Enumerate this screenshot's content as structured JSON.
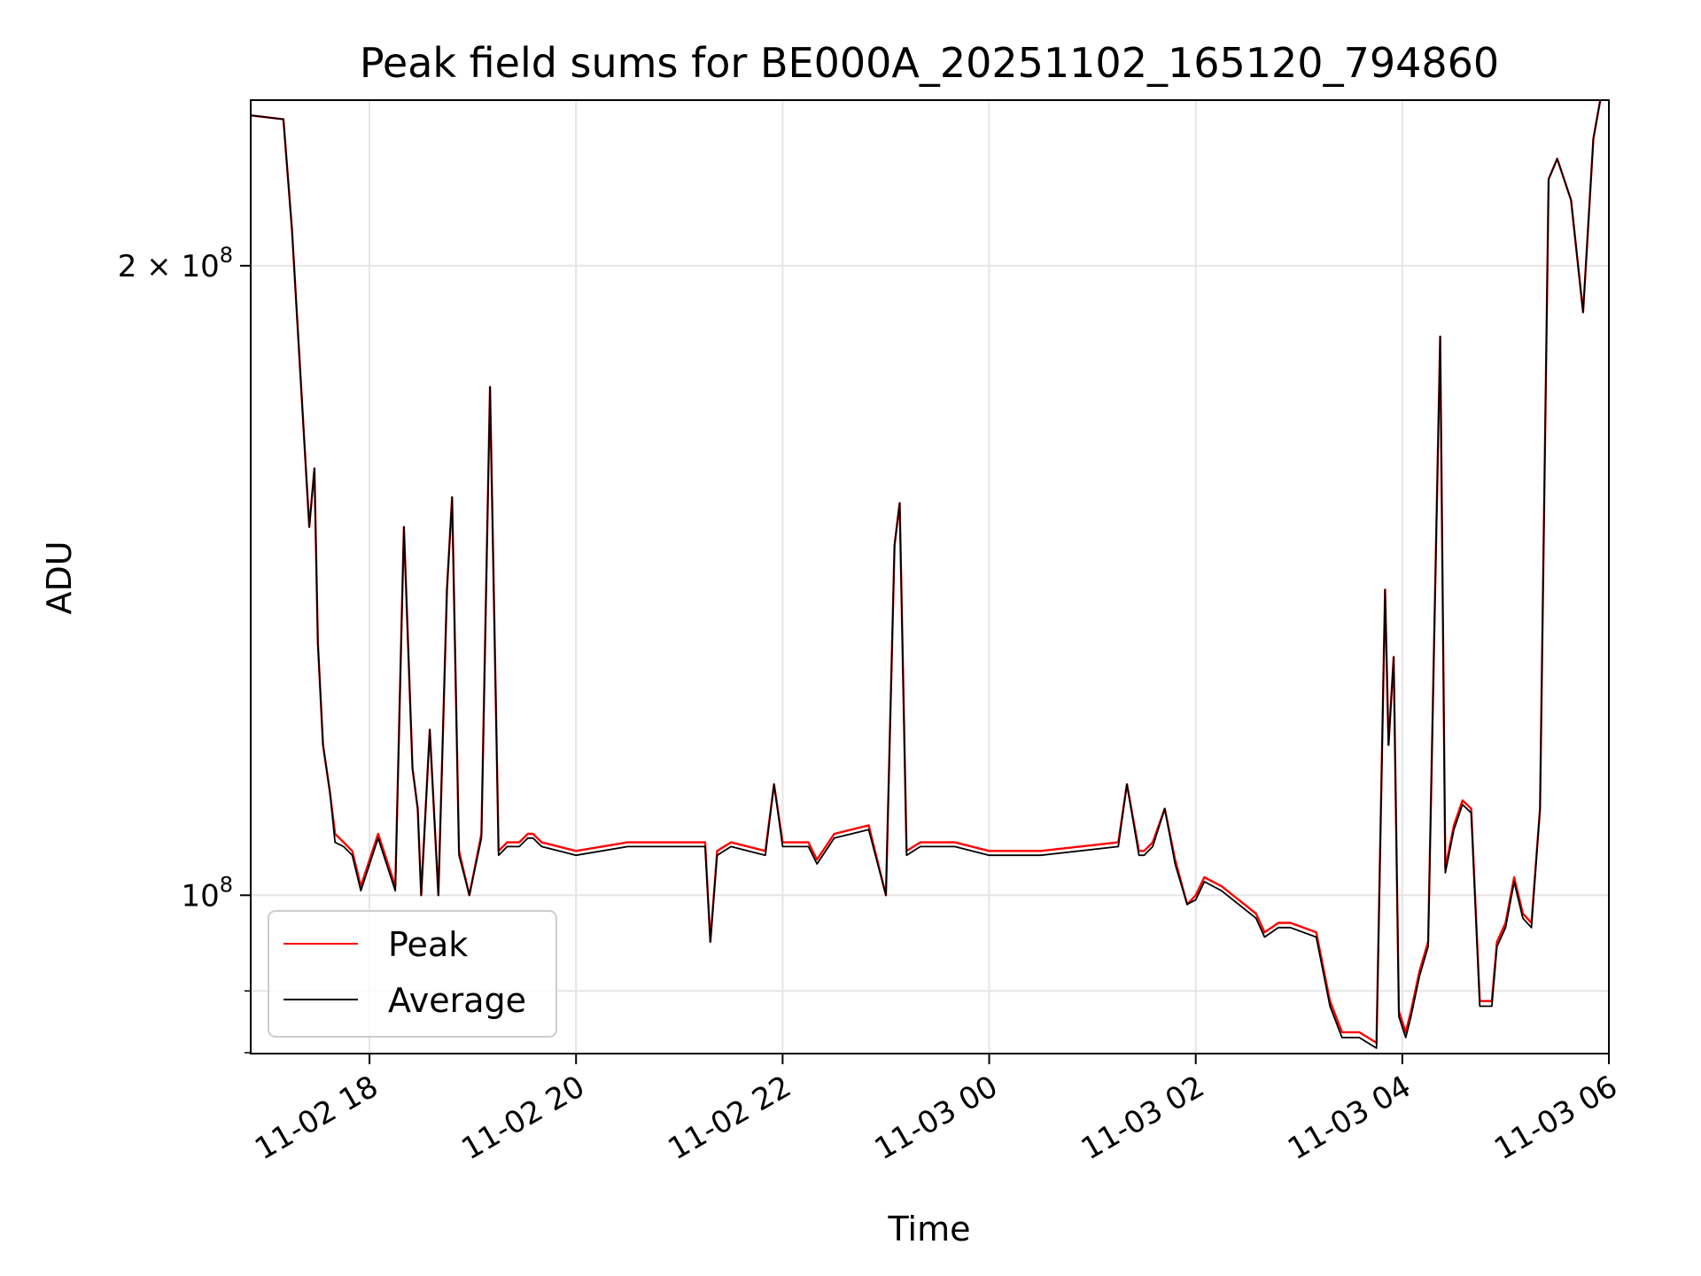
{
  "chart_data": {
    "type": "line",
    "title": "Peak field sums for BE000A_20251102_165120_794860",
    "xlabel": "Time",
    "ylabel": "ADU",
    "x_axis": "date",
    "y_scale": "log",
    "grid": true,
    "legend_position": "lower-left",
    "x_range": [
      "2025-11-02 16:51",
      "2025-11-03 06:00"
    ],
    "ylim": [
      84000000,
      240000000
    ],
    "x_ticks": [
      {
        "x": "2025-11-02 18:00",
        "label": "11-02 18"
      },
      {
        "x": "2025-11-02 20:00",
        "label": "11-02 20"
      },
      {
        "x": "2025-11-02 22:00",
        "label": "11-02 22"
      },
      {
        "x": "2025-11-03 00:00",
        "label": "11-03 00"
      },
      {
        "x": "2025-11-03 02:00",
        "label": "11-03 02"
      },
      {
        "x": "2025-11-03 04:00",
        "label": "11-03 04"
      },
      {
        "x": "2025-11-03 06:00",
        "label": "11-03 06"
      }
    ],
    "y_ticks_major": [
      {
        "value": 100000000,
        "base": "10",
        "exp": "8",
        "coef": ""
      },
      {
        "value": 200000000,
        "base": "10",
        "exp": "8",
        "coef": "2 × "
      }
    ],
    "y_ticks_minor": [
      90000000
    ],
    "series": [
      {
        "name": "Peak",
        "color": "#ff0000",
        "x": [
          "2025-11-02 16:51",
          "2025-11-02 17:10",
          "2025-11-02 17:15",
          "2025-11-02 17:25",
          "2025-11-02 17:28",
          "2025-11-02 17:30",
          "2025-11-02 17:33",
          "2025-11-02 17:37",
          "2025-11-02 17:40",
          "2025-11-02 17:45",
          "2025-11-02 17:50",
          "2025-11-02 17:55",
          "2025-11-02 18:05",
          "2025-11-02 18:15",
          "2025-11-02 18:20",
          "2025-11-02 18:25",
          "2025-11-02 18:28",
          "2025-11-02 18:30",
          "2025-11-02 18:35",
          "2025-11-02 18:40",
          "2025-11-02 18:45",
          "2025-11-02 18:48",
          "2025-11-02 18:52",
          "2025-11-02 18:58",
          "2025-11-02 19:05",
          "2025-11-02 19:10",
          "2025-11-02 19:15",
          "2025-11-02 19:20",
          "2025-11-02 19:27",
          "2025-11-02 19:32",
          "2025-11-02 19:35",
          "2025-11-02 19:40",
          "2025-11-02 20:00",
          "2025-11-02 20:30",
          "2025-11-02 21:00",
          "2025-11-02 21:15",
          "2025-11-02 21:18",
          "2025-11-02 21:22",
          "2025-11-02 21:30",
          "2025-11-02 21:50",
          "2025-11-02 21:55",
          "2025-11-02 22:00",
          "2025-11-02 22:15",
          "2025-11-02 22:20",
          "2025-11-02 22:30",
          "2025-11-02 22:50",
          "2025-11-02 23:00",
          "2025-11-02 23:05",
          "2025-11-02 23:08",
          "2025-11-02 23:12",
          "2025-11-02 23:20",
          "2025-11-02 23:40",
          "2025-11-03 00:00",
          "2025-11-03 00:30",
          "2025-11-03 01:15",
          "2025-11-03 01:20",
          "2025-11-03 01:27",
          "2025-11-03 01:30",
          "2025-11-03 01:35",
          "2025-11-03 01:42",
          "2025-11-03 01:48",
          "2025-11-03 01:55",
          "2025-11-03 02:00",
          "2025-11-03 02:05",
          "2025-11-03 02:15",
          "2025-11-03 02:35",
          "2025-11-03 02:40",
          "2025-11-03 02:48",
          "2025-11-03 02:55",
          "2025-11-03 03:10",
          "2025-11-03 03:18",
          "2025-11-03 03:25",
          "2025-11-03 03:35",
          "2025-11-03 03:45",
          "2025-11-03 03:50",
          "2025-11-03 03:52",
          "2025-11-03 03:55",
          "2025-11-03 03:58",
          "2025-11-03 04:02",
          "2025-11-03 04:05",
          "2025-11-03 04:10",
          "2025-11-03 04:15",
          "2025-11-03 04:22",
          "2025-11-03 04:25",
          "2025-11-03 04:30",
          "2025-11-03 04:35",
          "2025-11-03 04:40",
          "2025-11-03 04:45",
          "2025-11-03 04:52",
          "2025-11-03 04:55",
          "2025-11-03 05:00",
          "2025-11-03 05:05",
          "2025-11-03 05:10",
          "2025-11-03 05:15",
          "2025-11-03 05:20",
          "2025-11-03 05:25",
          "2025-11-03 05:30",
          "2025-11-03 05:38",
          "2025-11-03 05:45",
          "2025-11-03 05:51",
          "2025-11-03 05:55"
        ],
        "values": [
          236000000,
          235000000,
          208000000,
          150000000,
          160000000,
          132000000,
          118000000,
          112000000,
          107000000,
          106000000,
          105000000,
          101000000,
          107000000,
          101000000,
          150000000,
          115000000,
          110000000,
          100000000,
          120000000,
          100000000,
          140000000,
          155000000,
          105000000,
          100000000,
          107000000,
          175000000,
          105000000,
          106000000,
          106000000,
          107000000,
          107000000,
          106000000,
          105000000,
          106000000,
          106000000,
          106000000,
          95000000,
          105000000,
          106000000,
          105000000,
          113000000,
          106000000,
          106000000,
          104000000,
          107000000,
          108000000,
          100000000,
          147000000,
          154000000,
          105000000,
          106000000,
          106000000,
          105000000,
          105000000,
          106000000,
          113000000,
          105000000,
          105000000,
          106000000,
          110000000,
          104000000,
          99000000,
          100000000,
          102000000,
          101000000,
          98000000,
          96000000,
          97000000,
          97000000,
          96000000,
          89000000,
          86000000,
          86000000,
          85000000,
          140000000,
          118000000,
          130000000,
          88000000,
          86000000,
          88000000,
          92000000,
          95000000,
          185000000,
          103000000,
          108000000,
          111000000,
          110000000,
          89000000,
          89000000,
          95000000,
          97000000,
          102000000,
          98000000,
          97000000,
          110000000,
          220000000,
          225000000,
          215000000,
          190000000,
          230000000,
          240000000
        ]
      },
      {
        "name": "Average",
        "color": "#000000",
        "x": [
          "2025-11-02 16:51",
          "2025-11-02 17:10",
          "2025-11-02 17:15",
          "2025-11-02 17:25",
          "2025-11-02 17:28",
          "2025-11-02 17:30",
          "2025-11-02 17:33",
          "2025-11-02 17:37",
          "2025-11-02 17:40",
          "2025-11-02 17:45",
          "2025-11-02 17:50",
          "2025-11-02 17:55",
          "2025-11-02 18:05",
          "2025-11-02 18:15",
          "2025-11-02 18:20",
          "2025-11-02 18:25",
          "2025-11-02 18:28",
          "2025-11-02 18:30",
          "2025-11-02 18:35",
          "2025-11-02 18:40",
          "2025-11-02 18:45",
          "2025-11-02 18:48",
          "2025-11-02 18:52",
          "2025-11-02 18:58",
          "2025-11-02 19:05",
          "2025-11-02 19:10",
          "2025-11-02 19:15",
          "2025-11-02 19:20",
          "2025-11-02 19:27",
          "2025-11-02 19:32",
          "2025-11-02 19:35",
          "2025-11-02 19:40",
          "2025-11-02 20:00",
          "2025-11-02 20:30",
          "2025-11-02 21:00",
          "2025-11-02 21:15",
          "2025-11-02 21:18",
          "2025-11-02 21:22",
          "2025-11-02 21:30",
          "2025-11-02 21:50",
          "2025-11-02 21:55",
          "2025-11-02 22:00",
          "2025-11-02 22:15",
          "2025-11-02 22:20",
          "2025-11-02 22:30",
          "2025-11-02 22:50",
          "2025-11-02 23:00",
          "2025-11-02 23:05",
          "2025-11-02 23:08",
          "2025-11-02 23:12",
          "2025-11-02 23:20",
          "2025-11-02 23:40",
          "2025-11-03 00:00",
          "2025-11-03 00:30",
          "2025-11-03 01:15",
          "2025-11-03 01:20",
          "2025-11-03 01:27",
          "2025-11-03 01:30",
          "2025-11-03 01:35",
          "2025-11-03 01:42",
          "2025-11-03 01:48",
          "2025-11-03 01:55",
          "2025-11-03 02:00",
          "2025-11-03 02:05",
          "2025-11-03 02:15",
          "2025-11-03 02:35",
          "2025-11-03 02:40",
          "2025-11-03 02:48",
          "2025-11-03 02:55",
          "2025-11-03 03:10",
          "2025-11-03 03:18",
          "2025-11-03 03:25",
          "2025-11-03 03:35",
          "2025-11-03 03:45",
          "2025-11-03 03:50",
          "2025-11-03 03:52",
          "2025-11-03 03:55",
          "2025-11-03 03:58",
          "2025-11-03 04:02",
          "2025-11-03 04:05",
          "2025-11-03 04:10",
          "2025-11-03 04:15",
          "2025-11-03 04:22",
          "2025-11-03 04:25",
          "2025-11-03 04:30",
          "2025-11-03 04:35",
          "2025-11-03 04:40",
          "2025-11-03 04:45",
          "2025-11-03 04:52",
          "2025-11-03 04:55",
          "2025-11-03 05:00",
          "2025-11-03 05:05",
          "2025-11-03 05:10",
          "2025-11-03 05:15",
          "2025-11-03 05:20",
          "2025-11-03 05:25",
          "2025-11-03 05:30",
          "2025-11-03 05:38",
          "2025-11-03 05:45",
          "2025-11-03 05:51",
          "2025-11-03 05:55"
        ],
        "values": [
          236000000,
          235000000,
          208000000,
          150000000,
          160000000,
          132000000,
          118000000,
          112000000,
          106000000,
          105500000,
          104500000,
          100500000,
          106500000,
          100500000,
          150000000,
          115000000,
          110000000,
          100000000,
          120000000,
          100000000,
          140000000,
          155000000,
          104500000,
          100000000,
          106500000,
          175000000,
          104500000,
          105500000,
          105500000,
          106500000,
          106500000,
          105500000,
          104500000,
          105500000,
          105500000,
          105500000,
          95000000,
          104500000,
          105500000,
          104500000,
          113000000,
          105500000,
          105500000,
          103500000,
          106500000,
          107500000,
          100000000,
          147000000,
          154000000,
          104500000,
          105500000,
          105500000,
          104500000,
          104500000,
          105500000,
          113000000,
          104500000,
          104500000,
          105500000,
          110000000,
          103500000,
          99000000,
          99500000,
          101500000,
          100500000,
          97500000,
          95500000,
          96500000,
          96500000,
          95500000,
          88500000,
          85500000,
          85500000,
          84500000,
          140000000,
          118000000,
          130000000,
          87500000,
          85500000,
          87500000,
          91500000,
          94500000,
          185000000,
          102500000,
          107500000,
          110500000,
          109500000,
          88500000,
          88500000,
          94500000,
          96500000,
          101500000,
          97500000,
          96500000,
          110000000,
          220000000,
          225000000,
          215000000,
          190000000,
          230000000,
          240000000
        ]
      }
    ]
  }
}
